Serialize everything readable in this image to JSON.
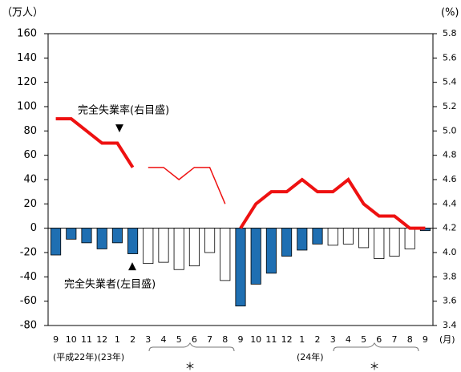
{
  "chart_data": {
    "type": "bar-line",
    "y_label": "（万人）",
    "y2_label": "(%)",
    "x_unit": "(月)",
    "categories": [
      "9",
      "10",
      "11",
      "12",
      "1",
      "2",
      "3",
      "4",
      "5",
      "6",
      "7",
      "8",
      "9",
      "10",
      "11",
      "12",
      "1",
      "2",
      "3",
      "4",
      "5",
      "6",
      "7",
      "8",
      "9"
    ],
    "year_labels": [
      "(平成22年)(23年)",
      "(24年)"
    ],
    "asterisk": "＊",
    "ylim": [
      -80,
      160
    ],
    "yticks": [
      -80,
      -60,
      -40,
      -20,
      0,
      20,
      40,
      60,
      80,
      100,
      120,
      140,
      160
    ],
    "y2lim": [
      3.4,
      5.8
    ],
    "y2ticks": [
      3.4,
      3.6,
      3.8,
      {
        "value": 4,
        "label": "4.0"
      },
      4.2,
      4.4,
      4.6,
      4.8,
      {
        "value": 5,
        "label": "5.0"
      },
      5.2,
      5.4,
      5.6,
      5.8
    ],
    "series": [
      {
        "name": "完全失業者(左目盛)",
        "type": "bar",
        "values": [
          -22,
          -9,
          -12,
          -17,
          -12,
          -21,
          -29,
          -28,
          -34,
          -31,
          -20,
          -43,
          -64,
          -46,
          -37,
          -23,
          -18,
          -13,
          -14,
          -13,
          -16,
          -25,
          -23,
          -17,
          -2
        ],
        "colors": [
          "#1f6fb2",
          "#1f6fb2",
          "#1f6fb2",
          "#1f6fb2",
          "#1f6fb2",
          "#1f6fb2",
          "#ffffff",
          "#ffffff",
          "#ffffff",
          "#ffffff",
          "#ffffff",
          "#ffffff",
          "#1f6fb2",
          "#1f6fb2",
          "#1f6fb2",
          "#1f6fb2",
          "#1f6fb2",
          "#1f6fb2",
          "#ffffff",
          "#ffffff",
          "#ffffff",
          "#ffffff",
          "#ffffff",
          "#ffffff",
          "#1f6fb2"
        ]
      },
      {
        "name": "完全失業率(右目盛)",
        "type": "line",
        "axis": "y2",
        "color": "#ee1111",
        "width": 4,
        "values": [
          5.1,
          5.1,
          5.0,
          4.9,
          4.9,
          4.7,
          null,
          null,
          null,
          null,
          null,
          null,
          4.2,
          4.4,
          4.5,
          4.5,
          4.6,
          4.5,
          4.5,
          4.6,
          4.4,
          4.3,
          4.3,
          4.2,
          4.2
        ]
      },
      {
        "type": "line",
        "axis": "y2",
        "color": "#ee1111",
        "width": 1.5,
        "values": [
          null,
          null,
          null,
          null,
          null,
          null,
          4.7,
          4.7,
          4.6,
          4.7,
          4.7,
          4.4,
          null,
          null,
          null,
          null,
          null,
          null,
          null,
          null,
          null,
          null,
          null,
          null,
          null
        ]
      }
    ]
  }
}
